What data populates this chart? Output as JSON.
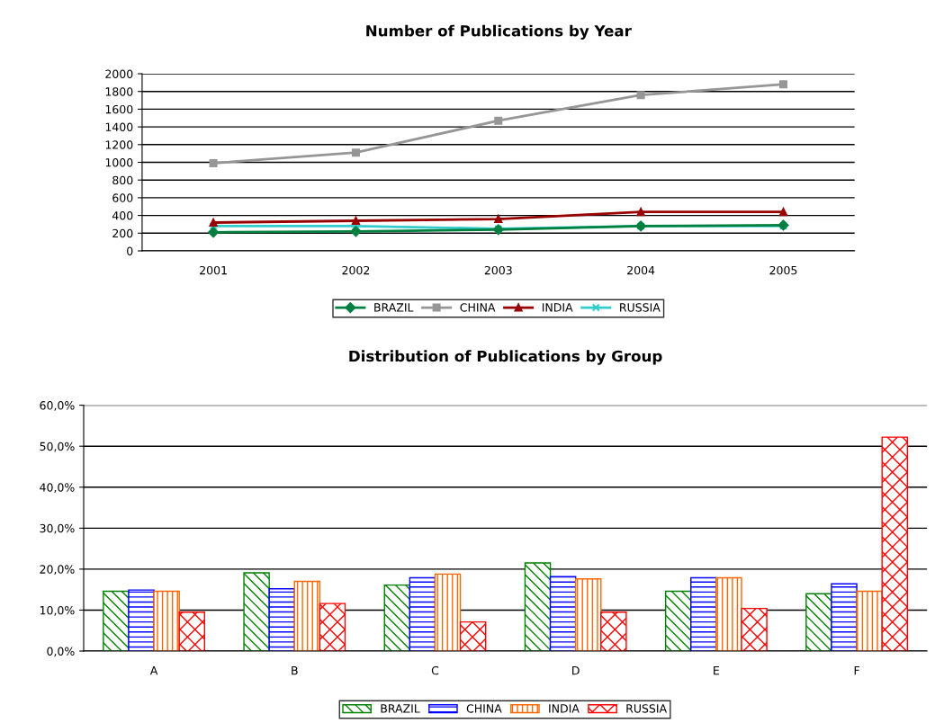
{
  "chart_data": [
    {
      "type": "line",
      "title": "Number of Publications by Year",
      "categories": [
        "2001",
        "2002",
        "2003",
        "2004",
        "2005"
      ],
      "ylim": [
        0,
        2000
      ],
      "yticks": [
        0,
        200,
        400,
        600,
        800,
        1000,
        1200,
        1400,
        1600,
        1800,
        2000
      ],
      "grid": "y",
      "legend": "bottom",
      "series": [
        {
          "name": "BRAZIL",
          "color": "#008040",
          "marker": "diamond",
          "values": [
            210,
            220,
            240,
            280,
            290
          ]
        },
        {
          "name": "CHINA",
          "color": "#969696",
          "marker": "square",
          "values": [
            990,
            1110,
            1470,
            1760,
            1880
          ]
        },
        {
          "name": "INDIA",
          "color": "#990000",
          "marker": "triangle",
          "values": [
            320,
            340,
            360,
            440,
            440
          ]
        },
        {
          "name": "RUSSIA",
          "color": "#33cccc",
          "marker": "cross",
          "values": [
            280,
            280,
            250,
            280,
            280
          ]
        }
      ]
    },
    {
      "type": "bar",
      "title": "Distribution of Publications by Group",
      "categories": [
        "A",
        "B",
        "C",
        "D",
        "E",
        "F"
      ],
      "ylim": [
        0,
        60
      ],
      "yticks": [
        {
          "value": 0,
          "label": "0,0%"
        },
        {
          "value": 10,
          "label": "10,0%"
        },
        {
          "value": 20,
          "label": "20,0%"
        },
        {
          "value": 30,
          "label": "30,0%"
        },
        {
          "value": 40,
          "label": "40,0%"
        },
        {
          "value": 50,
          "label": "50,0%"
        },
        {
          "value": 60,
          "label": "60,0%"
        }
      ],
      "grid": "y",
      "legend": "bottom",
      "series": [
        {
          "name": "BRAZIL",
          "color": "#008000",
          "values": [
            14.6,
            19.1,
            16.1,
            21.5,
            14.6,
            14.0
          ]
        },
        {
          "name": "CHINA",
          "color": "#0000ff",
          "values": [
            14.9,
            15.2,
            17.9,
            18.2,
            17.9,
            16.4
          ]
        },
        {
          "name": "INDIA",
          "color": "#ff6600",
          "values": [
            14.6,
            17.0,
            18.8,
            17.6,
            17.9,
            14.6
          ]
        },
        {
          "name": "RUSSIA",
          "color": "#ff0000",
          "values": [
            9.5,
            11.6,
            7.1,
            9.5,
            10.4,
            52.2
          ]
        }
      ]
    }
  ]
}
